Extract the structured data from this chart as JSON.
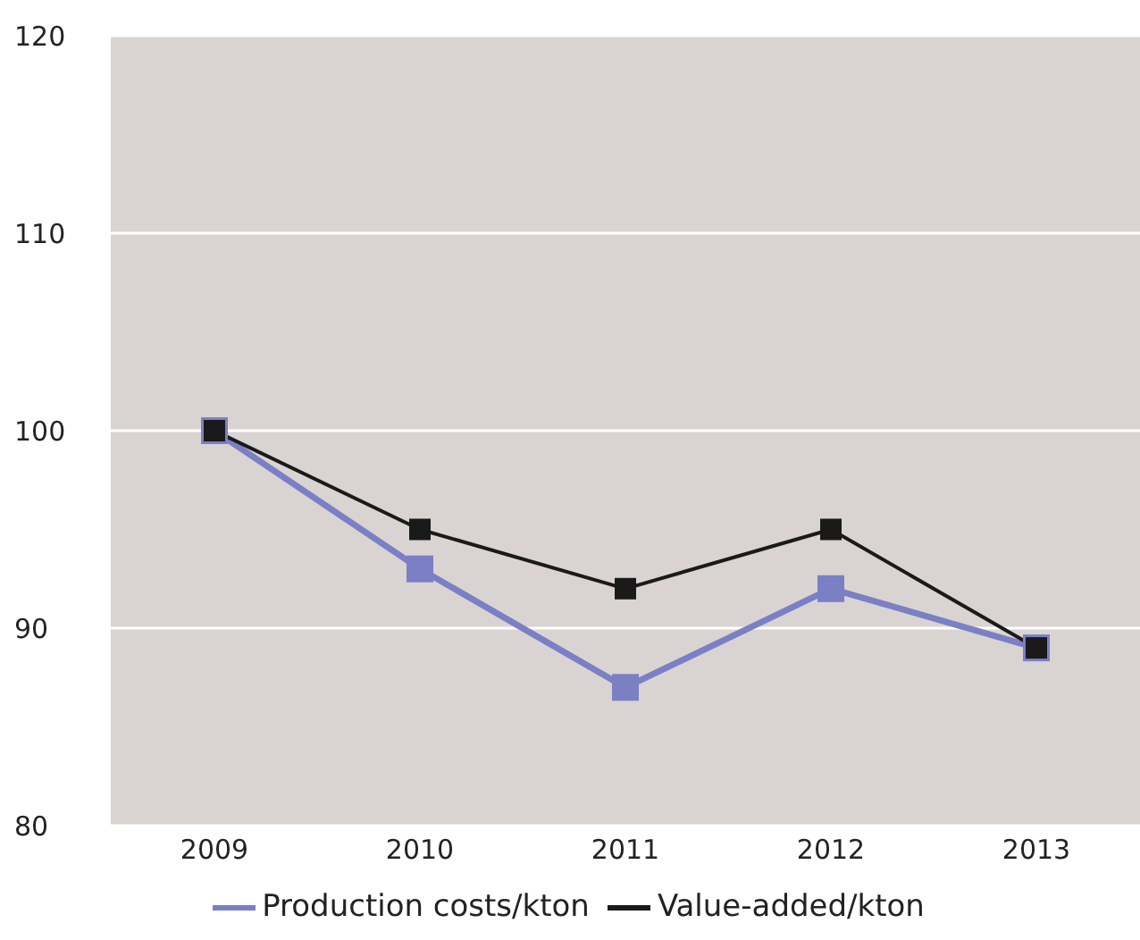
{
  "chart_data": {
    "type": "line",
    "categories": [
      "2009",
      "2010",
      "2011",
      "2012",
      "2013"
    ],
    "series": [
      {
        "name": "Production costs/kton",
        "color": "#7b7fc4",
        "values": [
          100,
          93,
          87,
          92,
          89
        ]
      },
      {
        "name": "Value-added/kton",
        "color": "#1a1a1a",
        "values": [
          100,
          95,
          92,
          95,
          89
        ]
      }
    ],
    "ylim": [
      80,
      120
    ],
    "yticks": [
      80,
      90,
      100,
      110,
      120
    ],
    "grid": "y",
    "legend": "bottom",
    "marker": "square",
    "line_style": "solid"
  }
}
